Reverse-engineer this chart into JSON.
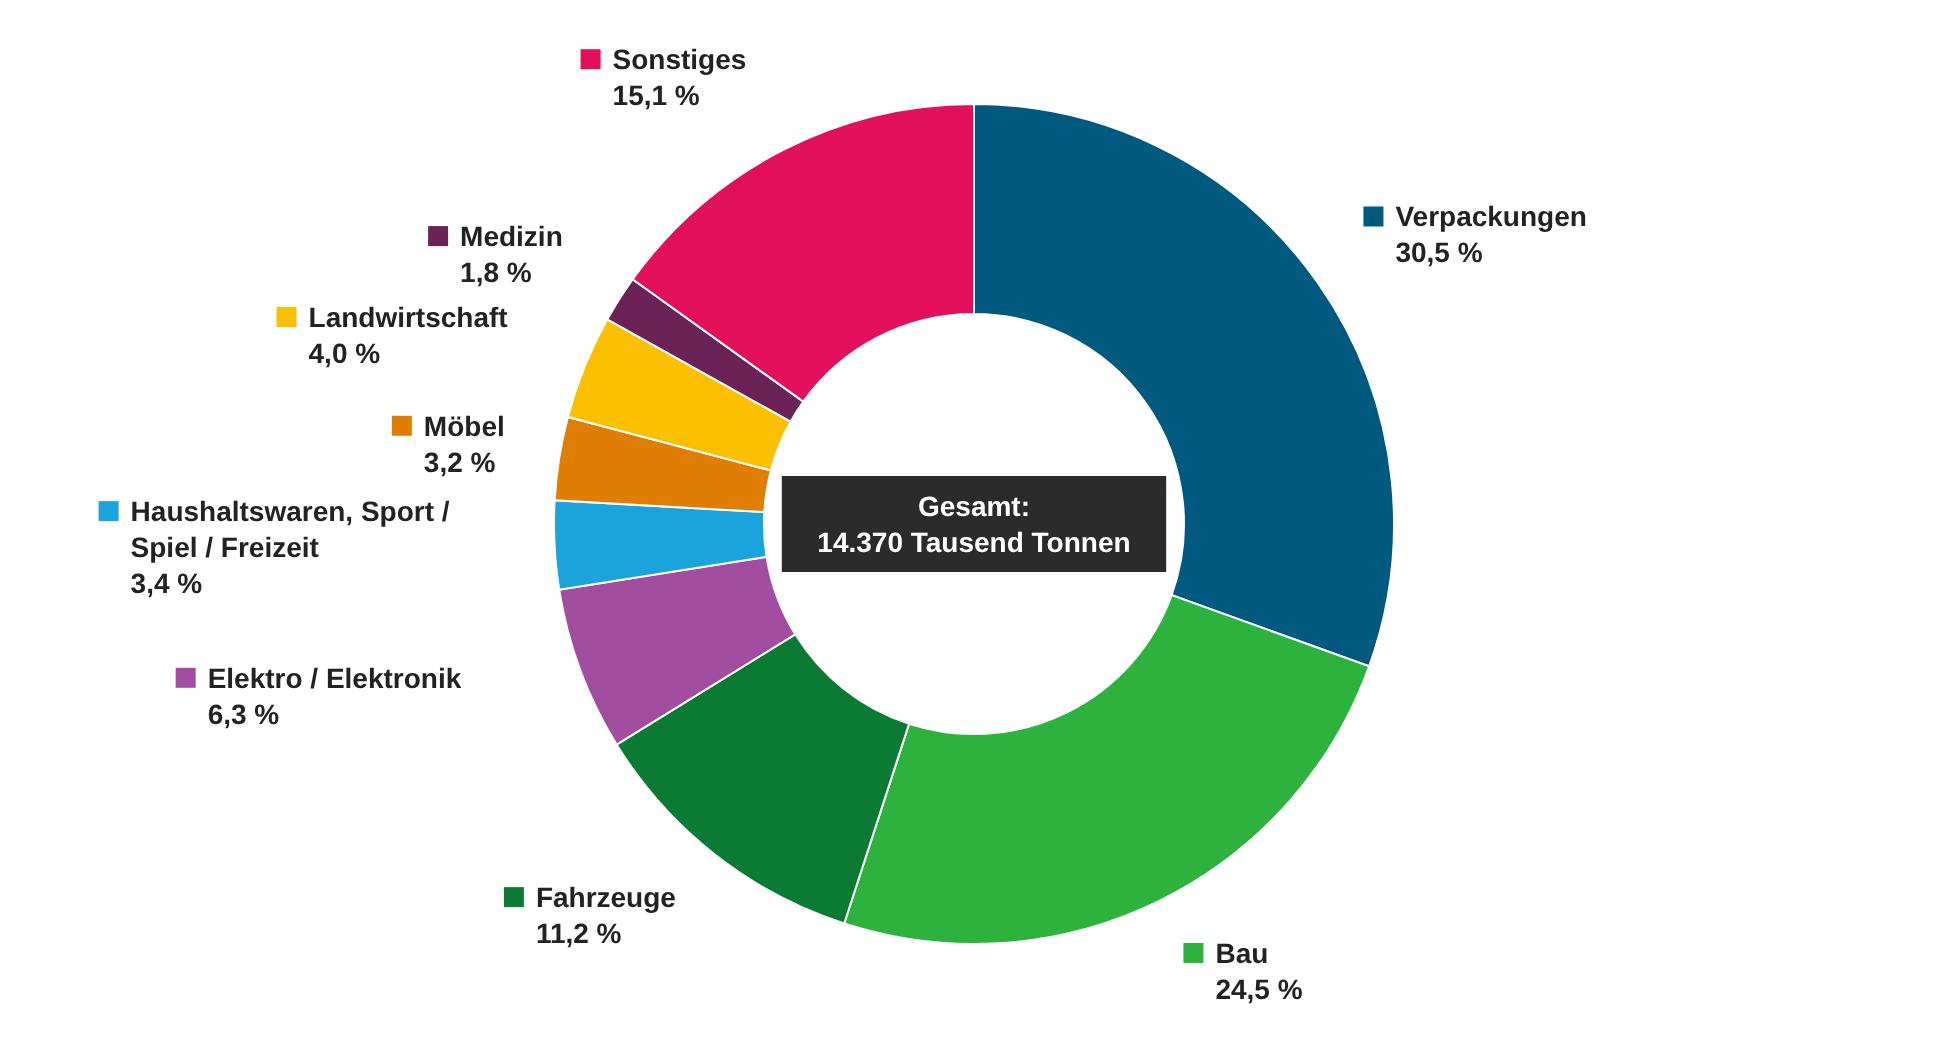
{
  "chart_data": {
    "type": "donut",
    "categories": [
      "Verpackungen",
      "Bau",
      "Fahrzeuge",
      "Elektro / Elektronik",
      "Haushaltswaren, Sport / Spiel / Freizeit",
      "Möbel",
      "Landwirtschaft",
      "Medizin",
      "Sonstiges"
    ],
    "values": [
      30.5,
      24.5,
      11.2,
      6.3,
      3.4,
      3.2,
      4.0,
      1.8,
      15.1
    ],
    "value_labels": [
      "30,5 %",
      "24,5 %",
      "11,2 %",
      "6,3 %",
      "3,4 %",
      "3,2 %",
      "4,0 %",
      "1,8 %",
      "15,1 %"
    ],
    "colors": [
      "#005a80",
      "#2db33d",
      "#0b7b34",
      "#a24ea0",
      "#1ba3dc",
      "#e07d05",
      "#fbc100",
      "#6a2257",
      "#e2105b"
    ],
    "annotations": [
      "Gesamt:",
      "14.370 Tausend Tonnen"
    ],
    "legend": true
  }
}
